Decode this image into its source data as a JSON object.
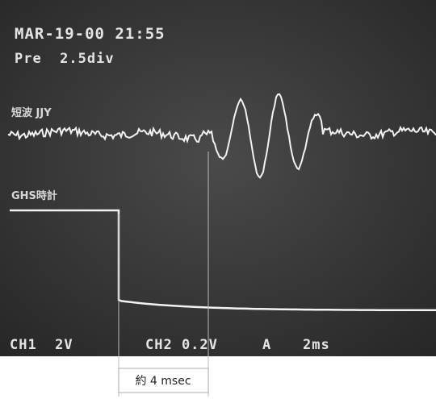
{
  "screen": {
    "date_time": "MAR-19-00 21:55",
    "trigger": "Pre  2.5div",
    "traces": [
      {
        "label": "短波 JJY"
      },
      {
        "label": "GHS時計"
      }
    ],
    "status": {
      "ch1": "CH1  2V",
      "ch2": "CH2 0.2V",
      "mode": "A",
      "timebase": "2ms"
    }
  },
  "annotation": {
    "label": "約 4 msec"
  }
}
